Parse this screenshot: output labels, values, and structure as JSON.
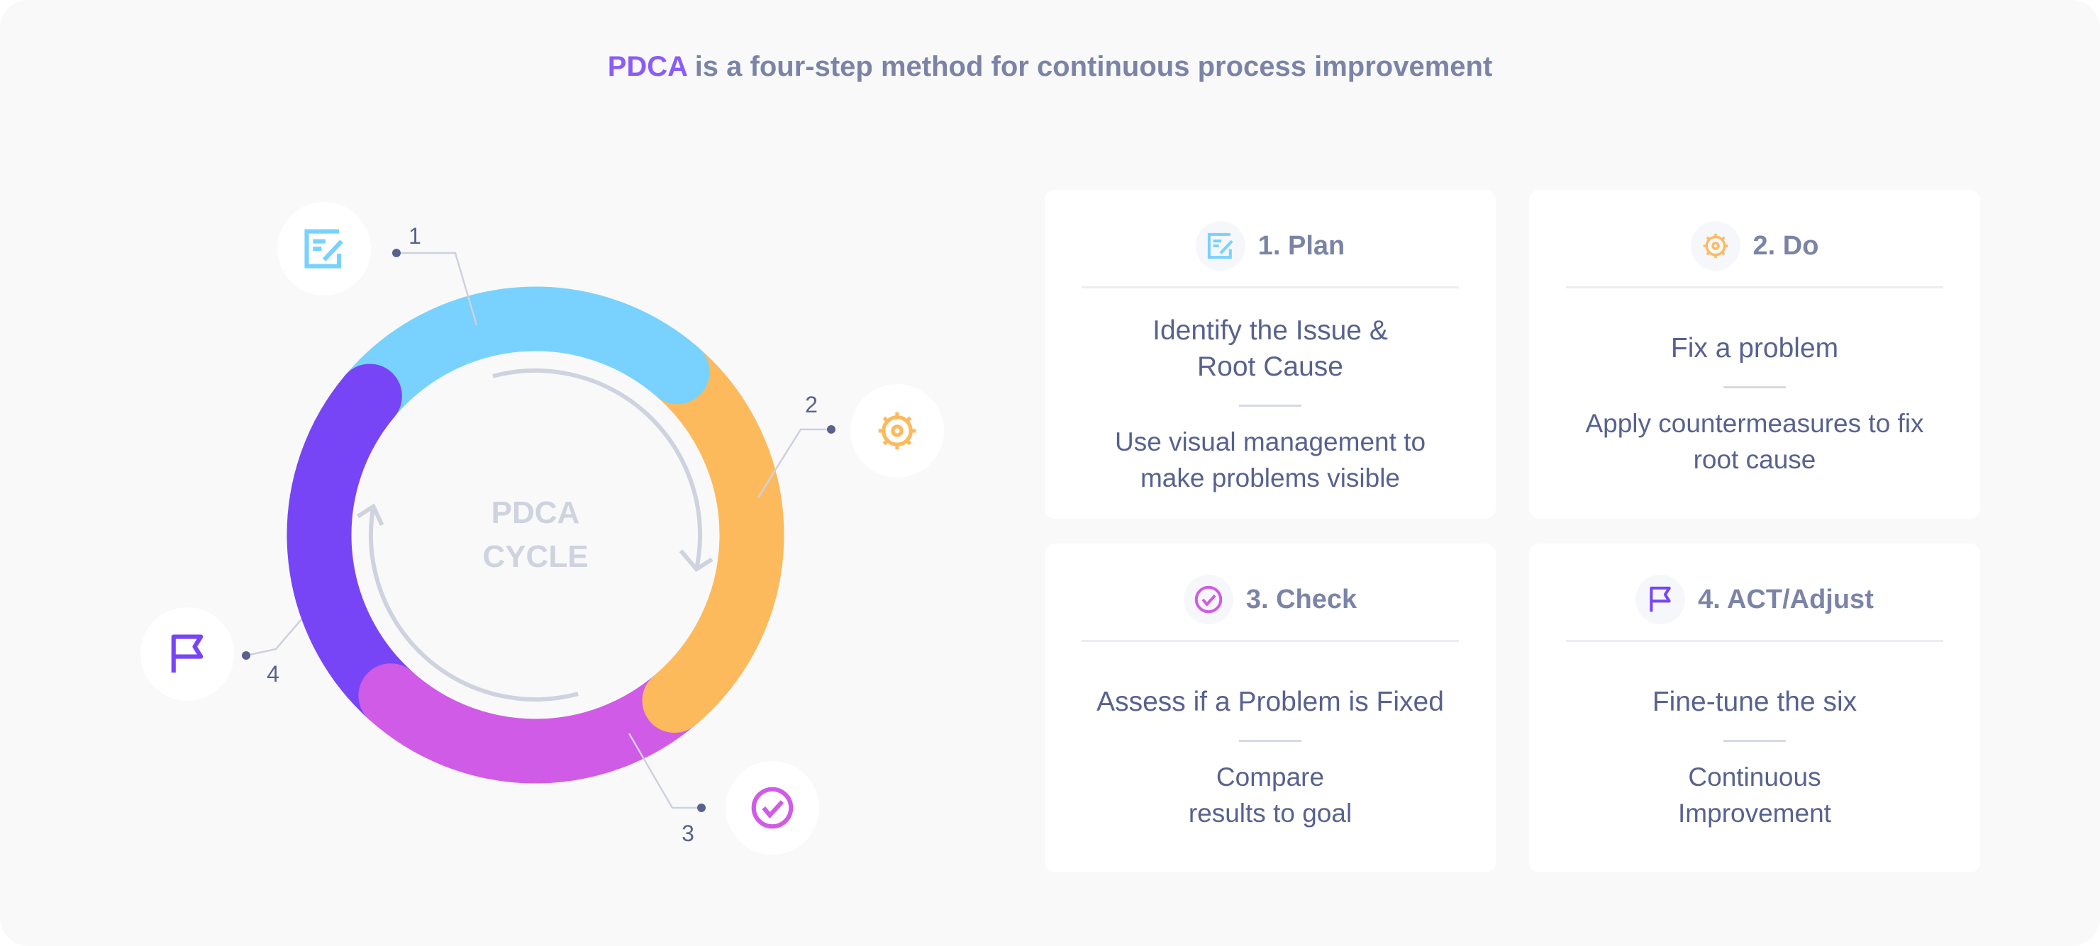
{
  "title": {
    "accent": "PDCA",
    "rest": " is a four-step method for continuous process improvement"
  },
  "cycle": {
    "center_line1": "PDCA",
    "center_line2": "CYCLE",
    "step_numbers": [
      "1",
      "2",
      "3",
      "4"
    ]
  },
  "colors": {
    "plan": "#79d2fd",
    "do": "#fdba5d",
    "check": "#d05be6",
    "act": "#7745f5",
    "accent": "#8b5cf6"
  },
  "cards": [
    {
      "title": "1. Plan",
      "icon": "edit-document-icon",
      "heading": "Identify the Issue & Root Cause",
      "desc": "Use visual management to make problems visible"
    },
    {
      "title": "2. Do",
      "icon": "gear-icon",
      "heading": "Fix a problem",
      "desc": "Apply countermeasures to fix root cause"
    },
    {
      "title": "3. Check",
      "icon": "check-circle-icon",
      "heading": "Assess if a Problem is Fixed",
      "desc": "Compare results to goal"
    },
    {
      "title": "4. ACT/Adjust",
      "icon": "flag-icon",
      "heading": "Fine-tune the six",
      "desc": "Continuous Improvement"
    }
  ]
}
